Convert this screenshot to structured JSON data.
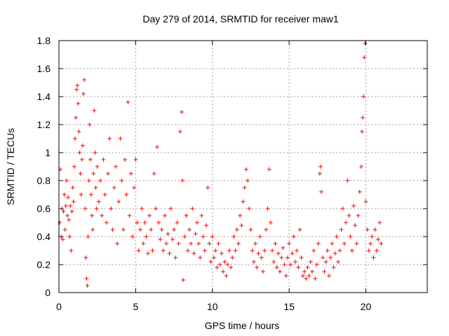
{
  "chart_data": {
    "type": "scatter",
    "title": "Day 279 of 2014, SRMTID for receiver maw1",
    "xlabel": "GPS time / hours",
    "ylabel": "SRMTID / TECUs",
    "xlim": [
      0,
      24
    ],
    "ylim": [
      0,
      1.8
    ],
    "xticks": [
      0,
      5,
      10,
      15,
      20
    ],
    "yticks": [
      0,
      0.2,
      0.4,
      0.6,
      0.8,
      1,
      1.2,
      1.4,
      1.6,
      1.8
    ],
    "xtick_labels": [
      "0",
      "5",
      "10",
      "15",
      "20"
    ],
    "ytick_labels": [
      "0",
      "0.2",
      "0.4",
      "0.6",
      "0.8",
      "1",
      "1.2",
      "1.4",
      "1.6",
      "1.8"
    ],
    "grid": true,
    "marker": "+",
    "color": "#ff0000",
    "series": [
      {
        "name": "SRMTID",
        "points": [
          [
            0.05,
            0.5
          ],
          [
            0.1,
            0.88
          ],
          [
            0.15,
            0.4
          ],
          [
            0.2,
            0.6
          ],
          [
            0.25,
            0.38
          ],
          [
            0.3,
            0.58
          ],
          [
            0.35,
            0.7
          ],
          [
            0.4,
            0.45
          ],
          [
            0.45,
            0.62
          ],
          [
            0.5,
            0.8
          ],
          [
            0.55,
            0.55
          ],
          [
            0.6,
            0.68
          ],
          [
            0.65,
            0.52
          ],
          [
            0.7,
            0.4
          ],
          [
            0.75,
            0.62
          ],
          [
            0.8,
            0.3
          ],
          [
            0.85,
            0.58
          ],
          [
            0.9,
            0.75
          ],
          [
            0.95,
            0.65
          ],
          [
            1.0,
            0.9
          ],
          [
            1.05,
            1.1
          ],
          [
            1.1,
            1.25
          ],
          [
            1.15,
            1.45
          ],
          [
            1.2,
            1.48
          ],
          [
            1.25,
            1.35
          ],
          [
            1.3,
            1.15
          ],
          [
            1.35,
            1.0
          ],
          [
            1.4,
            0.85
          ],
          [
            1.45,
            0.7
          ],
          [
            1.5,
            0.95
          ],
          [
            1.55,
            1.05
          ],
          [
            1.6,
            1.42
          ],
          [
            1.65,
            1.52
          ],
          [
            1.7,
            0.6
          ],
          [
            1.75,
            0.25
          ],
          [
            1.8,
            0.1
          ],
          [
            1.85,
            0.05
          ],
          [
            1.9,
            0.4
          ],
          [
            1.95,
            0.8
          ],
          [
            2.0,
            1.2
          ],
          [
            2.05,
            0.95
          ],
          [
            2.1,
            0.7
          ],
          [
            2.15,
            0.55
          ],
          [
            2.2,
            0.45
          ],
          [
            2.25,
            0.85
          ],
          [
            2.3,
            1.3
          ],
          [
            2.35,
            1.0
          ],
          [
            2.4,
            0.75
          ],
          [
            2.45,
            0.6
          ],
          [
            2.5,
            0.9
          ],
          [
            2.6,
            0.65
          ],
          [
            2.7,
            0.8
          ],
          [
            2.8,
            0.55
          ],
          [
            2.9,
            0.95
          ],
          [
            3.0,
            0.7
          ],
          [
            3.1,
            0.5
          ],
          [
            3.2,
            0.85
          ],
          [
            3.3,
            1.1
          ],
          [
            3.4,
            0.6
          ],
          [
            3.5,
            0.45
          ],
          [
            3.6,
            0.75
          ],
          [
            3.7,
            0.9
          ],
          [
            3.8,
            0.35
          ],
          [
            3.9,
            0.65
          ],
          [
            4.0,
            1.1
          ],
          [
            4.1,
            0.8
          ],
          [
            4.2,
            0.45
          ],
          [
            4.3,
            0.95
          ],
          [
            4.4,
            0.7
          ],
          [
            4.5,
            1.36
          ],
          [
            4.6,
            0.55
          ],
          [
            4.7,
            0.85
          ],
          [
            4.8,
            0.4
          ],
          [
            4.9,
            0.75
          ],
          [
            5.0,
            0.95
          ],
          [
            5.1,
            0.5
          ],
          [
            5.2,
            0.3
          ],
          [
            5.3,
            0.45
          ],
          [
            5.4,
            0.6
          ],
          [
            5.5,
            0.35
          ],
          [
            5.6,
            0.5
          ],
          [
            5.7,
            0.4
          ],
          [
            5.8,
            0.28
          ],
          [
            5.9,
            0.55
          ],
          [
            6.0,
            0.45
          ],
          [
            6.1,
            0.3
          ],
          [
            6.2,
            0.85
          ],
          [
            6.3,
            0.6
          ],
          [
            6.4,
            1.04
          ],
          [
            6.5,
            0.5
          ],
          [
            6.6,
            0.38
          ],
          [
            6.7,
            0.45
          ],
          [
            6.8,
            0.3
          ],
          [
            6.9,
            0.55
          ],
          [
            7.0,
            0.35
          ],
          [
            7.1,
            0.42
          ],
          [
            7.2,
            0.28
          ],
          [
            7.3,
            0.6
          ],
          [
            7.4,
            0.38
          ],
          [
            7.5,
            0.45
          ],
          [
            7.6,
            0.25
          ],
          [
            7.7,
            0.5
          ],
          [
            7.8,
            0.35
          ],
          [
            7.9,
            1.15
          ],
          [
            8.0,
            1.29
          ],
          [
            8.05,
            0.8
          ],
          [
            8.1,
            0.09
          ],
          [
            8.2,
            0.4
          ],
          [
            8.3,
            0.55
          ],
          [
            8.4,
            0.3
          ],
          [
            8.5,
            0.45
          ],
          [
            8.6,
            0.35
          ],
          [
            8.7,
            0.6
          ],
          [
            8.8,
            0.28
          ],
          [
            8.9,
            0.42
          ],
          [
            9.0,
            0.5
          ],
          [
            9.1,
            0.35
          ],
          [
            9.2,
            0.25
          ],
          [
            9.3,
            0.55
          ],
          [
            9.4,
            0.4
          ],
          [
            9.5,
            0.3
          ],
          [
            9.6,
            0.48
          ],
          [
            9.7,
            0.75
          ],
          [
            9.8,
            0.35
          ],
          [
            9.9,
            0.22
          ],
          [
            10.0,
            0.4
          ],
          [
            10.1,
            0.25
          ],
          [
            10.2,
            0.3
          ],
          [
            10.3,
            0.18
          ],
          [
            10.4,
            0.35
          ],
          [
            10.5,
            0.2
          ],
          [
            10.6,
            0.28
          ],
          [
            10.7,
            0.15
          ],
          [
            10.8,
            0.22
          ],
          [
            10.9,
            0.12
          ],
          [
            11.0,
            0.2
          ],
          [
            11.1,
            0.3
          ],
          [
            11.2,
            0.18
          ],
          [
            11.3,
            0.25
          ],
          [
            11.4,
            0.4
          ],
          [
            11.5,
            0.3
          ],
          [
            11.6,
            0.45
          ],
          [
            11.7,
            0.35
          ],
          [
            11.8,
            0.55
          ],
          [
            11.9,
            0.48
          ],
          [
            12.0,
            0.65
          ],
          [
            12.1,
            0.75
          ],
          [
            12.2,
            0.88
          ],
          [
            12.3,
            0.8
          ],
          [
            12.4,
            0.6
          ],
          [
            12.5,
            0.45
          ],
          [
            12.6,
            0.3
          ],
          [
            12.7,
            0.22
          ],
          [
            12.8,
            0.35
          ],
          [
            12.9,
            0.18
          ],
          [
            13.0,
            0.28
          ],
          [
            13.1,
            0.4
          ],
          [
            13.2,
            0.25
          ],
          [
            13.3,
            0.15
          ],
          [
            13.4,
            0.3
          ],
          [
            13.5,
            0.45
          ],
          [
            13.6,
            0.6
          ],
          [
            13.7,
            0.88
          ],
          [
            13.8,
            0.5
          ],
          [
            13.9,
            0.3
          ],
          [
            14.0,
            0.22
          ],
          [
            14.1,
            0.35
          ],
          [
            14.2,
            0.18
          ],
          [
            14.3,
            0.28
          ],
          [
            14.4,
            0.15
          ],
          [
            14.5,
            0.25
          ],
          [
            14.6,
            0.32
          ],
          [
            14.7,
            0.2
          ],
          [
            14.8,
            0.12
          ],
          [
            14.9,
            0.25
          ],
          [
            15.0,
            0.35
          ],
          [
            15.1,
            0.2
          ],
          [
            15.2,
            0.28
          ],
          [
            15.3,
            0.4
          ],
          [
            15.4,
            0.22
          ],
          [
            15.5,
            0.3
          ],
          [
            15.6,
            0.18
          ],
          [
            15.7,
            0.45
          ],
          [
            15.8,
            0.25
          ],
          [
            15.9,
            0.12
          ],
          [
            16.0,
            0.15
          ],
          [
            16.1,
            0.1
          ],
          [
            16.2,
            0.18
          ],
          [
            16.3,
            0.12
          ],
          [
            16.4,
            0.22
          ],
          [
            16.5,
            0.15
          ],
          [
            16.6,
            0.3
          ],
          [
            16.7,
            0.1
          ],
          [
            16.8,
            0.2
          ],
          [
            16.9,
            0.35
          ],
          [
            17.0,
            0.85
          ],
          [
            17.05,
            0.9
          ],
          [
            17.1,
            0.72
          ],
          [
            17.2,
            0.25
          ],
          [
            17.3,
            0.15
          ],
          [
            17.4,
            0.22
          ],
          [
            17.5,
            0.3
          ],
          [
            17.6,
            0.12
          ],
          [
            17.7,
            0.25
          ],
          [
            17.8,
            0.35
          ],
          [
            17.9,
            0.18
          ],
          [
            18.0,
            0.28
          ],
          [
            18.1,
            0.4
          ],
          [
            18.2,
            0.22
          ],
          [
            18.3,
            0.3
          ],
          [
            18.4,
            0.45
          ],
          [
            18.5,
            0.6
          ],
          [
            18.6,
            0.35
          ],
          [
            18.7,
            0.5
          ],
          [
            18.8,
            0.8
          ],
          [
            18.9,
            0.55
          ],
          [
            19.0,
            0.4
          ],
          [
            19.1,
            0.3
          ],
          [
            19.2,
            0.62
          ],
          [
            19.3,
            0.48
          ],
          [
            19.4,
            0.35
          ],
          [
            19.5,
            0.55
          ],
          [
            19.6,
            0.72
          ],
          [
            19.7,
            0.9
          ],
          [
            19.75,
            1.15
          ],
          [
            19.8,
            1.25
          ],
          [
            19.85,
            1.4
          ],
          [
            19.9,
            1.68
          ],
          [
            19.95,
            1.78
          ],
          [
            20.0,
            0.65
          ],
          [
            20.1,
            0.45
          ],
          [
            20.2,
            0.3
          ],
          [
            20.3,
            0.35
          ],
          [
            20.4,
            0.4
          ],
          [
            20.5,
            0.25
          ],
          [
            20.6,
            0.45
          ],
          [
            20.7,
            0.3
          ],
          [
            20.8,
            0.38
          ],
          [
            20.9,
            0.5
          ],
          [
            21.0,
            0.35
          ]
        ]
      }
    ]
  }
}
